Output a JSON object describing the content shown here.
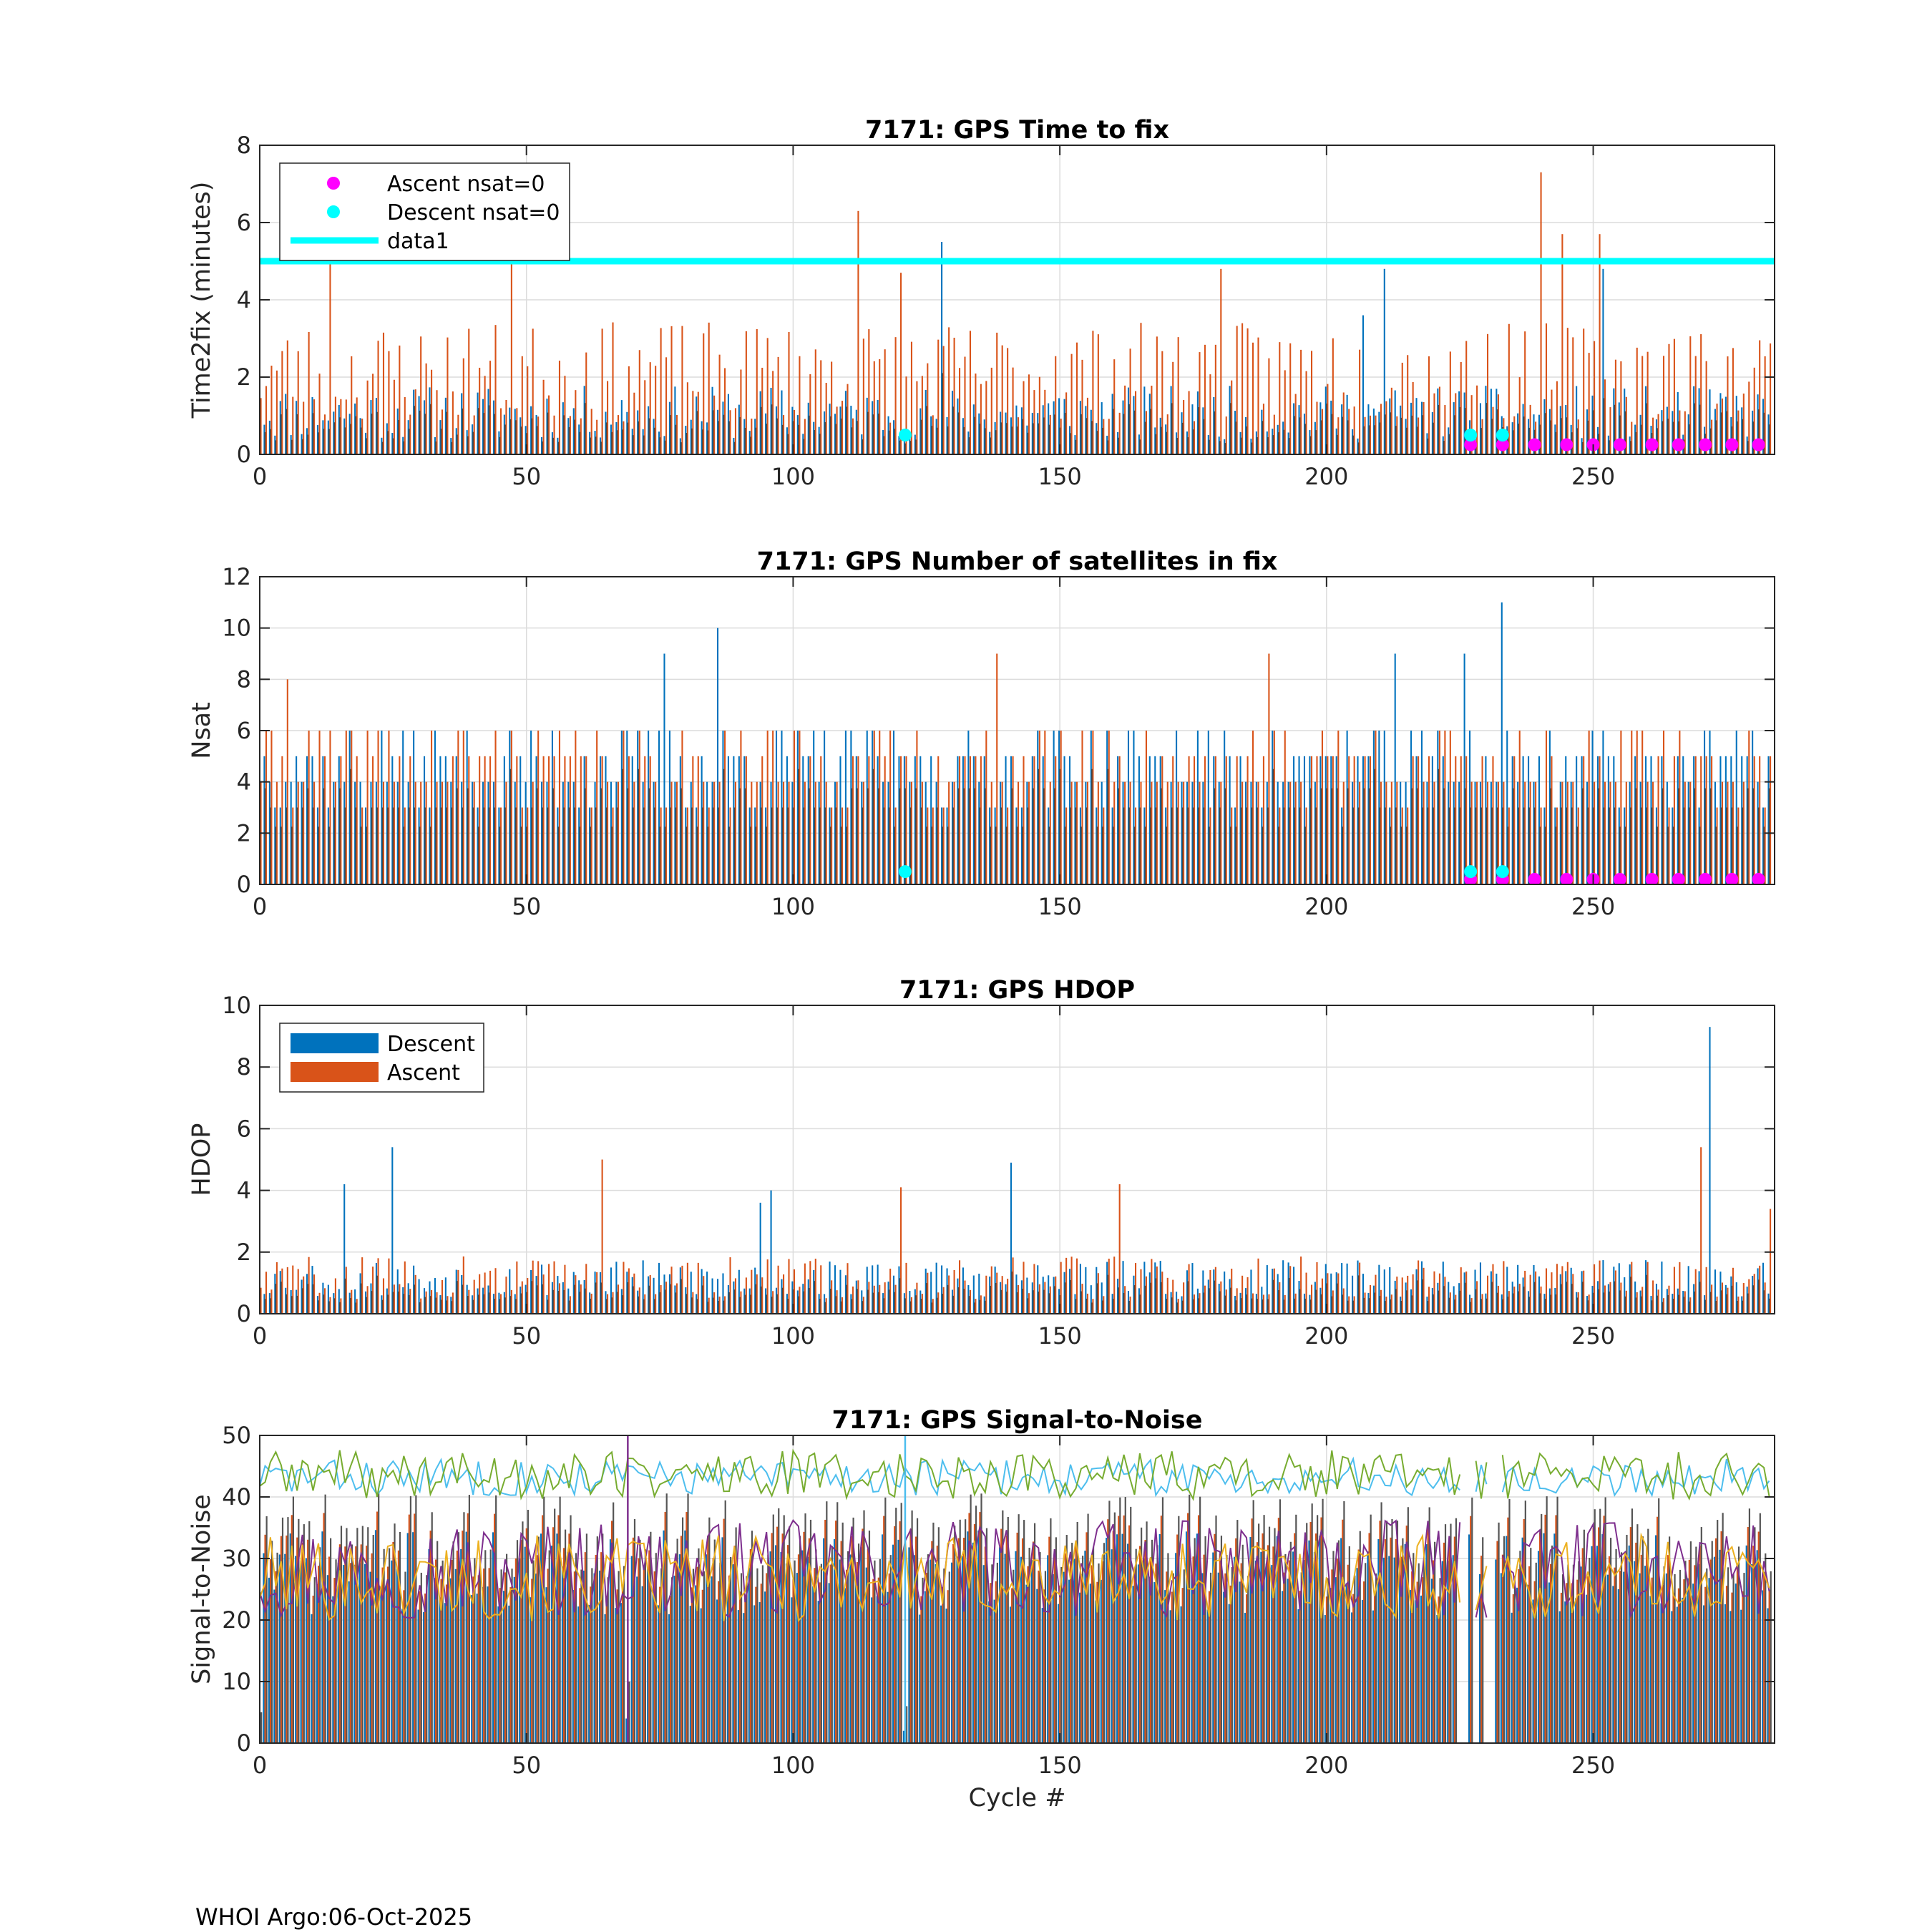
{
  "footer": "WHOI Argo:06-Oct-2025",
  "colors": {
    "descent": "#0072BD",
    "ascent": "#D95319",
    "ascent_nsat0": "#FF00FF",
    "descent_nsat0": "#00FFFF",
    "data1": "#00FFFF",
    "sn_series": [
      "#4DBEEE",
      "#77AC30",
      "#7E2F8E",
      "#EDB120"
    ]
  },
  "chart_data": [
    {
      "id": "time2fix",
      "type": "bar",
      "title": "7171: GPS Time to fix",
      "xlabel": "",
      "ylabel": "Time2fix (minutes)",
      "xlim": [
        0,
        284
      ],
      "ylim": [
        0,
        8
      ],
      "xticks": [
        0,
        50,
        100,
        150,
        200,
        250
      ],
      "yticks": [
        0,
        2,
        4,
        6,
        8
      ],
      "grid": true,
      "legend": {
        "placement": "top-left",
        "entries": [
          "Ascent nsat=0",
          "Descent nsat=0",
          "data1"
        ]
      },
      "series": [
        {
          "name": "Descent",
          "generated": {
            "base": 0.8,
            "spread": 1.4,
            "seed": 11,
            "spikes": [
              [
                128,
                5.5
              ],
              [
                207,
                3.6
              ],
              [
                211,
                4.8
              ],
              [
                252,
                4.8
              ]
            ]
          }
        },
        {
          "name": "Ascent",
          "generated": {
            "base": 1.6,
            "spread": 2.6,
            "seed": 23,
            "spikes": [
              [
                13,
                5.0
              ],
              [
                47,
                5.0
              ],
              [
                112,
                6.3
              ],
              [
                120,
                4.7
              ],
              [
                180,
                4.8
              ],
              [
                240,
                7.3
              ],
              [
                244,
                5.7
              ],
              [
                251,
                5.7
              ]
            ]
          }
        }
      ],
      "ascent_nsat0": {
        "x": [
          227,
          233,
          239,
          245,
          250,
          255,
          261,
          266,
          271,
          276,
          281
        ],
        "y": [
          0.25,
          0.25,
          0.25,
          0.25,
          0.25,
          0.25,
          0.25,
          0.25,
          0.25,
          0.25,
          0.25
        ]
      },
      "descent_nsat0": {
        "x": [
          121,
          227,
          233
        ],
        "y": [
          0.5,
          0.5,
          0.5
        ]
      },
      "data1": {
        "x": [
          0,
          284
        ],
        "y": [
          5,
          5
        ]
      }
    },
    {
      "id": "nsat",
      "type": "bar",
      "title": "7171: GPS Number of satellites in fix",
      "xlabel": "",
      "ylabel": "Nsat",
      "xlim": [
        0,
        284
      ],
      "ylim": [
        0,
        12
      ],
      "xticks": [
        0,
        50,
        100,
        150,
        200,
        250
      ],
      "yticks": [
        0,
        2,
        4,
        6,
        8,
        10,
        12
      ],
      "grid": true,
      "series": [
        {
          "name": "Descent",
          "generated": {
            "base": 4,
            "spread": 3,
            "integer": true,
            "seed": 37,
            "spikes": [
              [
                76,
                9
              ],
              [
                86,
                10
              ],
              [
                233,
                11
              ],
              [
                213,
                9
              ],
              [
                226,
                9
              ]
            ]
          }
        },
        {
          "name": "Ascent",
          "generated": {
            "base": 4,
            "spread": 3,
            "integer": true,
            "seed": 41,
            "spikes": [
              [
                138,
                9
              ],
              [
                189,
                9
              ],
              [
                5,
                8
              ]
            ]
          }
        }
      ],
      "ascent_nsat0": {
        "x": [
          227,
          233,
          239,
          245,
          250,
          255,
          261,
          266,
          271,
          276,
          281
        ],
        "y": [
          0.2,
          0.2,
          0.2,
          0.2,
          0.2,
          0.2,
          0.2,
          0.2,
          0.2,
          0.2,
          0.2
        ]
      },
      "descent_nsat0": {
        "x": [
          121,
          227,
          233
        ],
        "y": [
          0.5,
          0.5,
          0.5
        ]
      }
    },
    {
      "id": "hdop",
      "type": "bar",
      "title": "7171: GPS HDOP",
      "xlabel": "",
      "ylabel": "HDOP",
      "xlim": [
        0,
        284
      ],
      "ylim": [
        0,
        10
      ],
      "xticks": [
        0,
        50,
        100,
        150,
        200,
        250
      ],
      "yticks": [
        0,
        2,
        4,
        6,
        8,
        10
      ],
      "grid": true,
      "legend": {
        "placement": "top-left",
        "entries": [
          "Descent",
          "Ascent"
        ]
      },
      "series": [
        {
          "name": "Descent",
          "generated": {
            "base": 0.9,
            "spread": 1.2,
            "seed": 53,
            "spikes": [
              [
                16,
                4.2
              ],
              [
                25,
                5.4
              ],
              [
                94,
                3.6
              ],
              [
                96,
                4.0
              ],
              [
                141,
                4.9
              ],
              [
                272,
                9.3
              ]
            ]
          }
        },
        {
          "name": "Ascent",
          "generated": {
            "base": 0.9,
            "spread": 1.4,
            "seed": 59,
            "spikes": [
              [
                64,
                5.0
              ],
              [
                120,
                4.1
              ],
              [
                161,
                4.2
              ],
              [
                270,
                5.4
              ],
              [
                283,
                3.4
              ]
            ]
          }
        }
      ]
    },
    {
      "id": "snr",
      "type": "bar",
      "title": "7171: GPS Signal-to-Noise",
      "xlabel": "Cycle #",
      "ylabel": "Signal-to-Noise",
      "xlim": [
        0,
        284
      ],
      "ylim": [
        0,
        50
      ],
      "xticks": [
        0,
        50,
        100,
        150,
        200,
        250
      ],
      "yticks": [
        0,
        10,
        20,
        30,
        40,
        50
      ],
      "grid": true,
      "series": [
        {
          "name": "bars",
          "generated": {
            "base": 28,
            "spread": 14,
            "seed": 71,
            "spikes": [
              [
                0,
                2
              ],
              [
                69,
                7
              ],
              [
                121,
                3
              ]
            ]
          }
        },
        {
          "name": "line1",
          "line": true,
          "generated": {
            "base": 42,
            "spread": 6,
            "seed": 83
          }
        },
        {
          "name": "line2",
          "line": true,
          "generated": {
            "base": 42,
            "spread": 8,
            "seed": 89
          }
        },
        {
          "name": "line3",
          "line": true,
          "generated": {
            "base": 25,
            "spread": 16,
            "seed": 97
          }
        },
        {
          "name": "line4",
          "line": true,
          "generated": {
            "base": 24,
            "spread": 14,
            "seed": 101
          }
        }
      ]
    }
  ]
}
